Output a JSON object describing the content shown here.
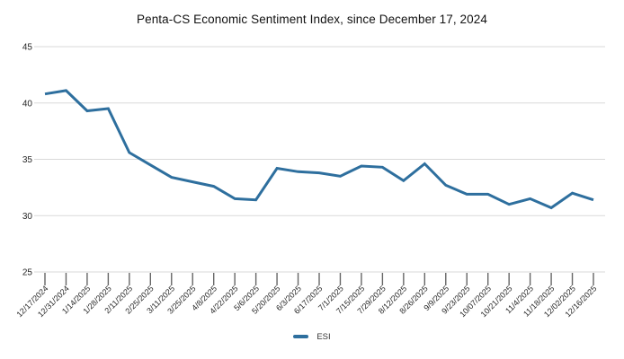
{
  "title": "Penta-CS Economic Sentiment Index, since December 17, 2024",
  "legend": {
    "position": "bottom-center",
    "items": [
      {
        "label": "ESI",
        "color": "#2e6f9e"
      }
    ]
  },
  "colors": {
    "line": "#2e6f9e",
    "grid": "#d9d9d9",
    "axis": "#d9d9d9",
    "tick_mark": "#666666",
    "tick_label": "#262626",
    "title_text": "#111111"
  },
  "chart_data": {
    "type": "line",
    "title": "Penta-CS Economic Sentiment Index, since December 17, 2024",
    "xlabel": "",
    "ylabel": "",
    "ylim": [
      25,
      45
    ],
    "yticks": [
      45,
      40,
      35,
      30,
      25
    ],
    "grid": "horizontal",
    "legend_position": "bottom-center",
    "x": [
      "12/17/2024",
      "12/31/2024",
      "1/14/2025",
      "1/28/2025",
      "2/11/2025",
      "2/25/2025",
      "3/11/2025",
      "3/25/2025",
      "4/8/2025",
      "4/22/2025",
      "5/6/2025",
      "5/20/2025",
      "6/3/2025",
      "6/17/2025",
      "7/1/2025",
      "7/15/2025",
      "7/29/2025",
      "8/12/2025",
      "8/26/2025",
      "9/9/2025",
      "9/23/2025",
      "10/07/2025",
      "10/21/2025",
      "11/4/2025",
      "11/18/2025",
      "12/02/2025",
      "12/16/2025"
    ],
    "series": [
      {
        "name": "ESI",
        "color": "#2e6f9e",
        "values": [
          40.8,
          41.1,
          39.3,
          39.5,
          35.6,
          34.5,
          33.4,
          33.0,
          32.6,
          31.5,
          31.4,
          34.2,
          33.9,
          33.8,
          33.5,
          34.4,
          34.3,
          33.1,
          34.6,
          32.7,
          31.9,
          31.9,
          31.0,
          31.5,
          30.7,
          32.0,
          31.4
        ]
      }
    ]
  }
}
